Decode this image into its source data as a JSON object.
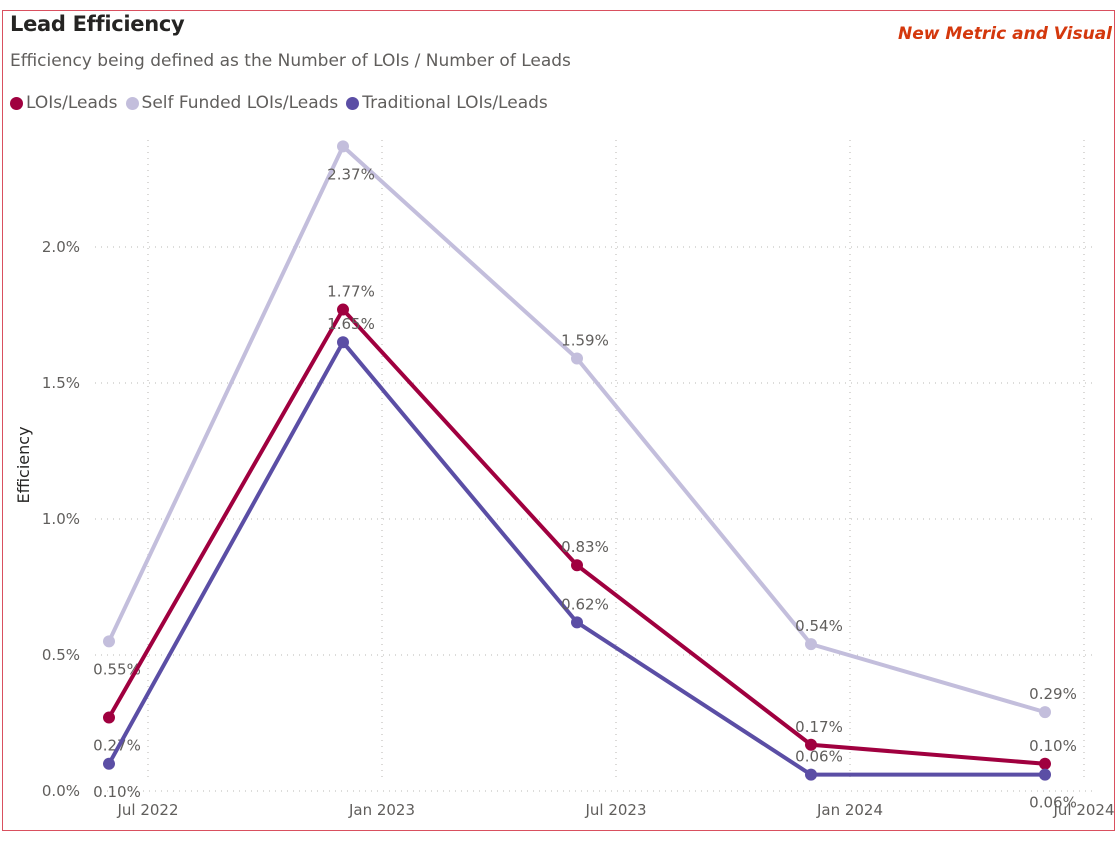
{
  "chart_data": {
    "type": "line",
    "title": "Lead Efficiency",
    "subtitle": "Efficiency being defined as the Number of LOIs / Number of Leads",
    "annotation": "New Metric and Visual",
    "xlabel": "",
    "ylabel": "Efficiency",
    "x": [
      "Jun 2022",
      "Dec 2022",
      "Jun 2023",
      "Dec 2023",
      "Jun 2024"
    ],
    "x_months_from_jul_2022": [
      -1,
      5,
      11,
      17,
      23
    ],
    "x_ticks": [
      {
        "label": "Jul 2022",
        "month": 0
      },
      {
        "label": "Jan 2023",
        "month": 6
      },
      {
        "label": "Jul 2023",
        "month": 12
      },
      {
        "label": "Jan 2024",
        "month": 18
      },
      {
        "label": "Jul 2024",
        "month": 24
      }
    ],
    "y_ticks": [
      {
        "label": "0.0%",
        "value": 0
      },
      {
        "label": "0.5%",
        "value": 0.5
      },
      {
        "label": "1.0%",
        "value": 1.0
      },
      {
        "label": "1.5%",
        "value": 1.5
      },
      {
        "label": "2.0%",
        "value": 2.0
      }
    ],
    "ylim": [
      0,
      2.4
    ],
    "grid": true,
    "legend_position": "top-left",
    "series": [
      {
        "name": "Self Funded LOIs/Leads",
        "color": "#c3bedc",
        "values": [
          0.55,
          2.37,
          1.59,
          0.54,
          0.29
        ],
        "labels": [
          "0.55%",
          "2.37%",
          "1.59%",
          "0.54%",
          "0.29%"
        ],
        "label_side": [
          "below",
          "below",
          "above",
          "above",
          "above"
        ]
      },
      {
        "name": "LOIs/Leads",
        "color": "#a0003f",
        "values": [
          0.27,
          1.77,
          0.83,
          0.17,
          0.1
        ],
        "labels": [
          "0.27%",
          "1.77%",
          "0.83%",
          "0.17%",
          "0.10%"
        ],
        "label_side": [
          "below",
          "above",
          "above",
          "above",
          "above"
        ]
      },
      {
        "name": "Traditional LOIs/Leads",
        "color": "#5b4ea5",
        "values": [
          0.1,
          1.65,
          0.62,
          0.06,
          0.06
        ],
        "labels": [
          "0.10%",
          "1.65%",
          "0.62%",
          "0.06%",
          "0.06%"
        ],
        "label_side": [
          "below",
          "above",
          "above",
          "above",
          "below"
        ]
      }
    ]
  },
  "legend": [
    {
      "name": "LOIs/Leads",
      "color": "#a0003f"
    },
    {
      "name": "Self Funded LOIs/Leads",
      "color": "#c3bedc"
    },
    {
      "name": "Traditional LOIs/Leads",
      "color": "#5b4ea5"
    }
  ]
}
